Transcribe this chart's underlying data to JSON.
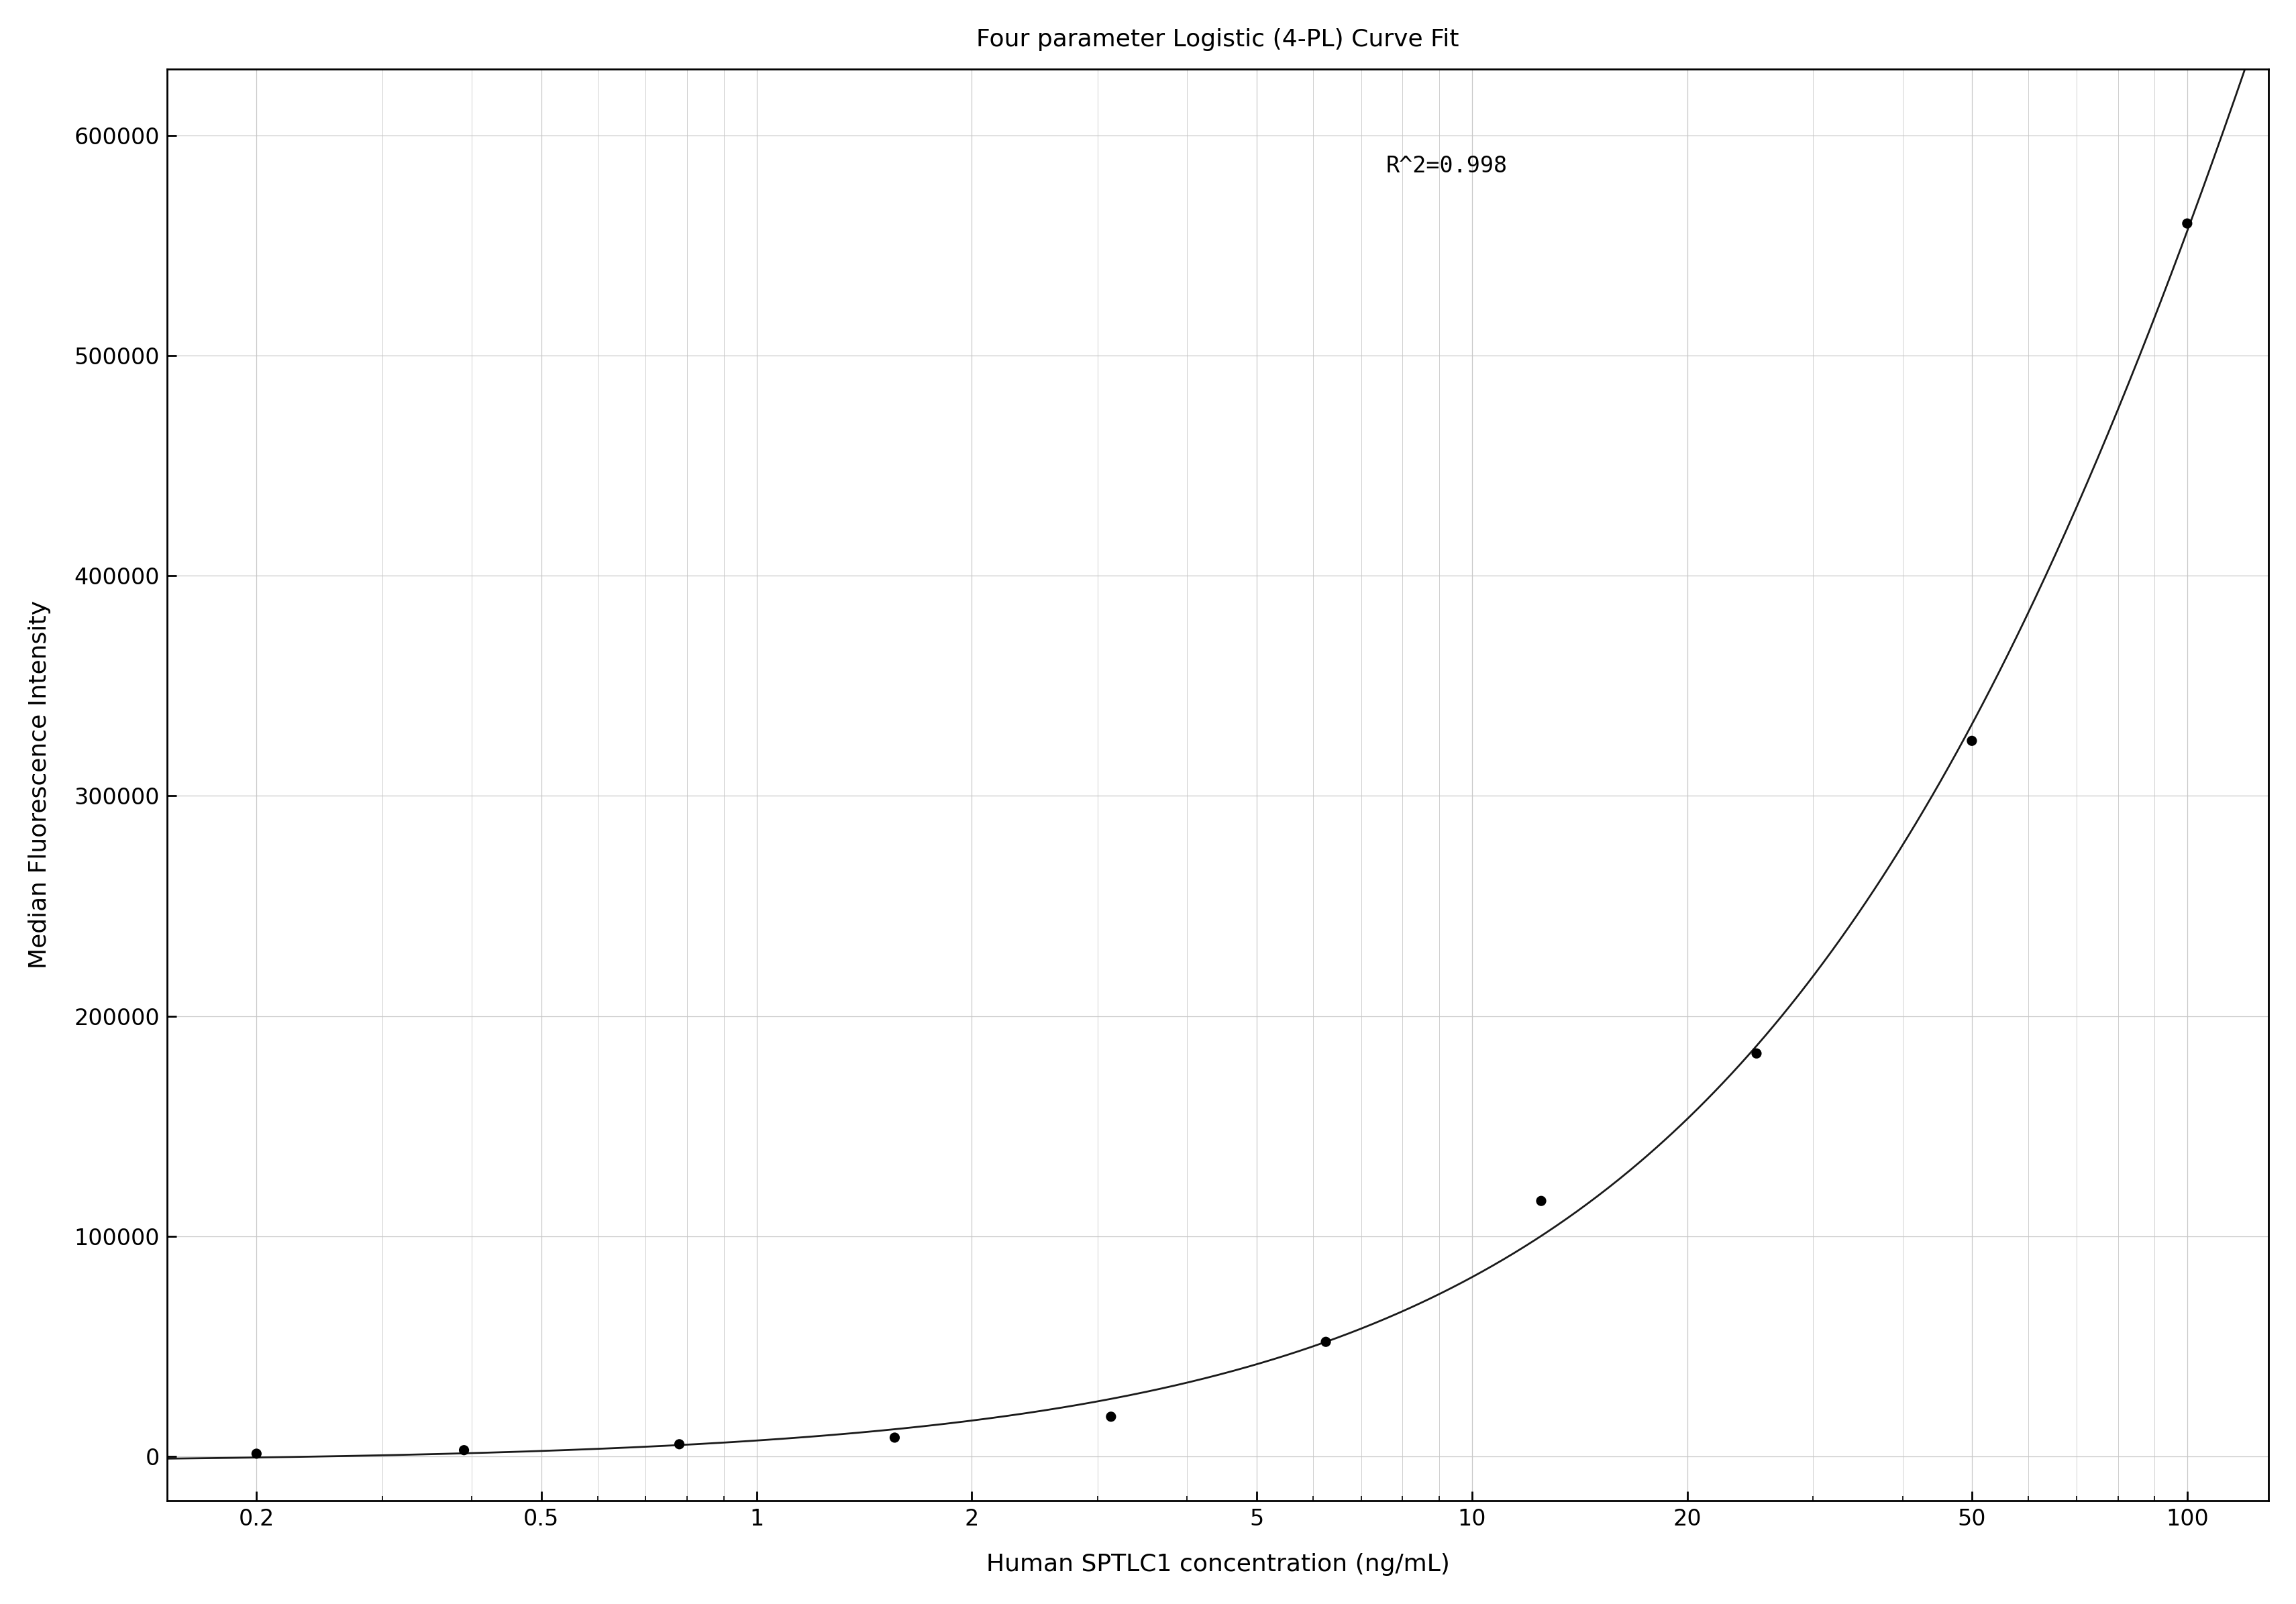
{
  "title": "Four parameter Logistic (4-PL) Curve Fit",
  "xlabel": "Human SPTLC1 concentration (ng/mL)",
  "ylabel": "Median Fluorescence Intensity",
  "r_squared_text": "R^2=0.998",
  "x_data": [
    0.2,
    0.39,
    0.78,
    1.56,
    3.13,
    6.25,
    12.5,
    25,
    50,
    100
  ],
  "y_data": [
    1200,
    2800,
    5500,
    8500,
    18000,
    52000,
    116000,
    183000,
    325000,
    560000
  ],
  "x_ticks": [
    0.2,
    0.5,
    1,
    2,
    5,
    10,
    20,
    50,
    100
  ],
  "x_tick_labels": [
    "0.2",
    "0.5",
    "1",
    "2",
    "5",
    "10",
    "20",
    "50",
    "100"
  ],
  "ylim": [
    -20000,
    630000
  ],
  "yticks": [
    0,
    100000,
    200000,
    300000,
    400000,
    500000,
    600000
  ],
  "xlim_log": [
    0.15,
    130
  ],
  "point_color": "#000000",
  "line_color": "#1a1a1a",
  "grid_color": "#c8c8c8",
  "background_color": "#ffffff",
  "title_fontsize": 26,
  "label_fontsize": 26,
  "tick_fontsize": 24,
  "annotation_fontsize": 24,
  "point_size": 120,
  "line_width": 2.0,
  "4pl_A": -3000,
  "4pl_B": 2.05,
  "4pl_C": 800,
  "4pl_D": 700000
}
